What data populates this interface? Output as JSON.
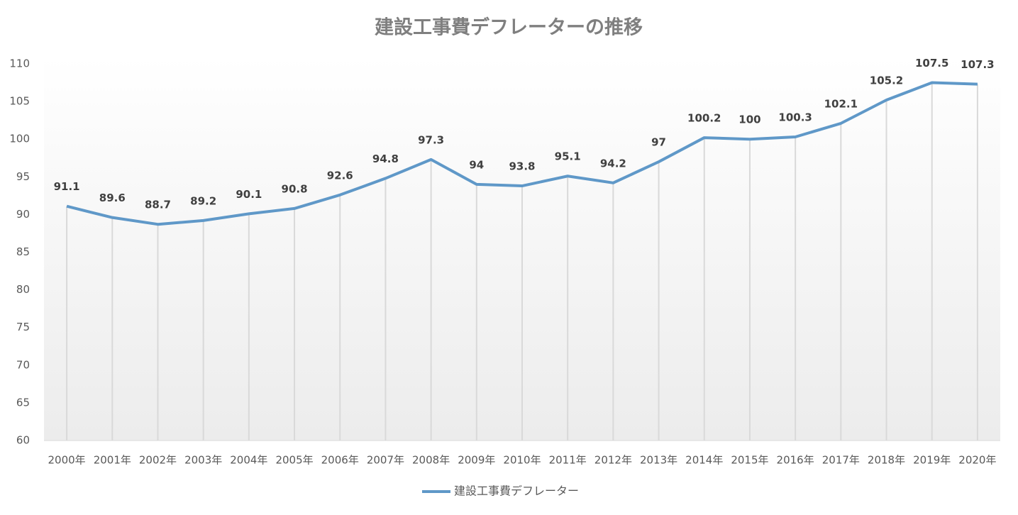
{
  "chart_data": {
    "type": "line",
    "title": "建設工事費デフレーターの推移",
    "categories": [
      "2000年",
      "2001年",
      "2002年",
      "2003年",
      "2004年",
      "2005年",
      "2006年",
      "2007年",
      "2008年",
      "2009年",
      "2010年",
      "2011年",
      "2012年",
      "2013年",
      "2014年",
      "2015年",
      "2016年",
      "2017年",
      "2018年",
      "2019年",
      "2020年"
    ],
    "series": [
      {
        "name": "建設工事費デフレーター",
        "color": "#5f98c8",
        "values": [
          91.1,
          89.6,
          88.7,
          89.2,
          90.1,
          90.8,
          92.6,
          94.8,
          97.3,
          94,
          93.8,
          95.1,
          94.2,
          97,
          100.2,
          100,
          100.3,
          102.1,
          105.2,
          107.5,
          107.3
        ]
      }
    ],
    "ylim": [
      60,
      110
    ],
    "yticks": [
      60,
      65,
      70,
      75,
      80,
      85,
      90,
      95,
      100,
      105,
      110
    ],
    "legend": "bottom"
  }
}
